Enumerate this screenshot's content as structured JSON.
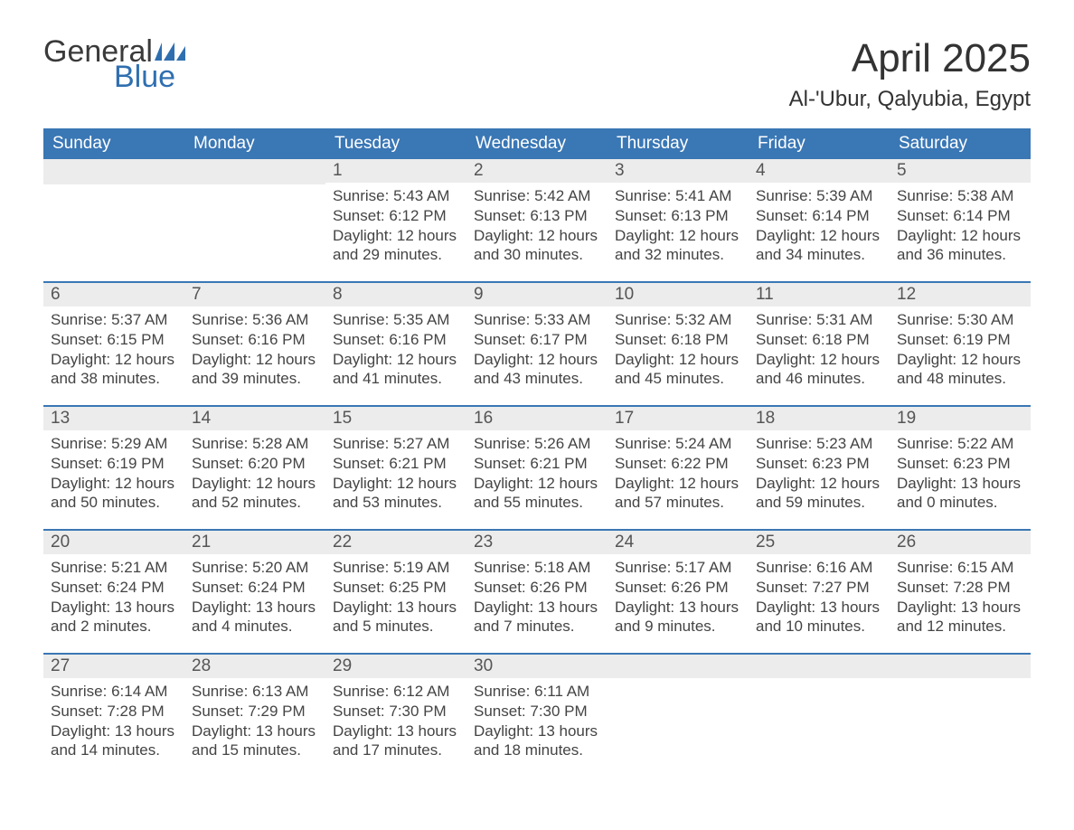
{
  "logo": {
    "word1": "General",
    "word2": "Blue"
  },
  "colors": {
    "brand_blue": "#3a77b5",
    "logo_blue": "#2f6fb0",
    "header_text": "#ffffff",
    "daynum_bg": "#ececec",
    "body_text": "#444444",
    "title_text": "#333333",
    "page_bg": "#ffffff"
  },
  "typography": {
    "month_title_pt": 44,
    "location_pt": 24,
    "header_pt": 19,
    "daynum_pt": 19,
    "body_pt": 17,
    "font_family": "Segoe UI, Arial, Helvetica, sans-serif"
  },
  "title": "April 2025",
  "location": "Al-'Ubur, Qalyubia, Egypt",
  "day_headers": [
    "Sunday",
    "Monday",
    "Tuesday",
    "Wednesday",
    "Thursday",
    "Friday",
    "Saturday"
  ],
  "labels": {
    "sunrise": "Sunrise: ",
    "sunset": "Sunset: ",
    "daylight": "Daylight: "
  },
  "weeks": [
    [
      null,
      null,
      {
        "n": "1",
        "sr": "5:43 AM",
        "ss": "6:12 PM",
        "dl": "12 hours and 29 minutes."
      },
      {
        "n": "2",
        "sr": "5:42 AM",
        "ss": "6:13 PM",
        "dl": "12 hours and 30 minutes."
      },
      {
        "n": "3",
        "sr": "5:41 AM",
        "ss": "6:13 PM",
        "dl": "12 hours and 32 minutes."
      },
      {
        "n": "4",
        "sr": "5:39 AM",
        "ss": "6:14 PM",
        "dl": "12 hours and 34 minutes."
      },
      {
        "n": "5",
        "sr": "5:38 AM",
        "ss": "6:14 PM",
        "dl": "12 hours and 36 minutes."
      }
    ],
    [
      {
        "n": "6",
        "sr": "5:37 AM",
        "ss": "6:15 PM",
        "dl": "12 hours and 38 minutes."
      },
      {
        "n": "7",
        "sr": "5:36 AM",
        "ss": "6:16 PM",
        "dl": "12 hours and 39 minutes."
      },
      {
        "n": "8",
        "sr": "5:35 AM",
        "ss": "6:16 PM",
        "dl": "12 hours and 41 minutes."
      },
      {
        "n": "9",
        "sr": "5:33 AM",
        "ss": "6:17 PM",
        "dl": "12 hours and 43 minutes."
      },
      {
        "n": "10",
        "sr": "5:32 AM",
        "ss": "6:18 PM",
        "dl": "12 hours and 45 minutes."
      },
      {
        "n": "11",
        "sr": "5:31 AM",
        "ss": "6:18 PM",
        "dl": "12 hours and 46 minutes."
      },
      {
        "n": "12",
        "sr": "5:30 AM",
        "ss": "6:19 PM",
        "dl": "12 hours and 48 minutes."
      }
    ],
    [
      {
        "n": "13",
        "sr": "5:29 AM",
        "ss": "6:19 PM",
        "dl": "12 hours and 50 minutes."
      },
      {
        "n": "14",
        "sr": "5:28 AM",
        "ss": "6:20 PM",
        "dl": "12 hours and 52 minutes."
      },
      {
        "n": "15",
        "sr": "5:27 AM",
        "ss": "6:21 PM",
        "dl": "12 hours and 53 minutes."
      },
      {
        "n": "16",
        "sr": "5:26 AM",
        "ss": "6:21 PM",
        "dl": "12 hours and 55 minutes."
      },
      {
        "n": "17",
        "sr": "5:24 AM",
        "ss": "6:22 PM",
        "dl": "12 hours and 57 minutes."
      },
      {
        "n": "18",
        "sr": "5:23 AM",
        "ss": "6:23 PM",
        "dl": "12 hours and 59 minutes."
      },
      {
        "n": "19",
        "sr": "5:22 AM",
        "ss": "6:23 PM",
        "dl": "13 hours and 0 minutes."
      }
    ],
    [
      {
        "n": "20",
        "sr": "5:21 AM",
        "ss": "6:24 PM",
        "dl": "13 hours and 2 minutes."
      },
      {
        "n": "21",
        "sr": "5:20 AM",
        "ss": "6:24 PM",
        "dl": "13 hours and 4 minutes."
      },
      {
        "n": "22",
        "sr": "5:19 AM",
        "ss": "6:25 PM",
        "dl": "13 hours and 5 minutes."
      },
      {
        "n": "23",
        "sr": "5:18 AM",
        "ss": "6:26 PM",
        "dl": "13 hours and 7 minutes."
      },
      {
        "n": "24",
        "sr": "5:17 AM",
        "ss": "6:26 PM",
        "dl": "13 hours and 9 minutes."
      },
      {
        "n": "25",
        "sr": "6:16 AM",
        "ss": "7:27 PM",
        "dl": "13 hours and 10 minutes."
      },
      {
        "n": "26",
        "sr": "6:15 AM",
        "ss": "7:28 PM",
        "dl": "13 hours and 12 minutes."
      }
    ],
    [
      {
        "n": "27",
        "sr": "6:14 AM",
        "ss": "7:28 PM",
        "dl": "13 hours and 14 minutes."
      },
      {
        "n": "28",
        "sr": "6:13 AM",
        "ss": "7:29 PM",
        "dl": "13 hours and 15 minutes."
      },
      {
        "n": "29",
        "sr": "6:12 AM",
        "ss": "7:30 PM",
        "dl": "13 hours and 17 minutes."
      },
      {
        "n": "30",
        "sr": "6:11 AM",
        "ss": "7:30 PM",
        "dl": "13 hours and 18 minutes."
      },
      null,
      null,
      null
    ]
  ]
}
